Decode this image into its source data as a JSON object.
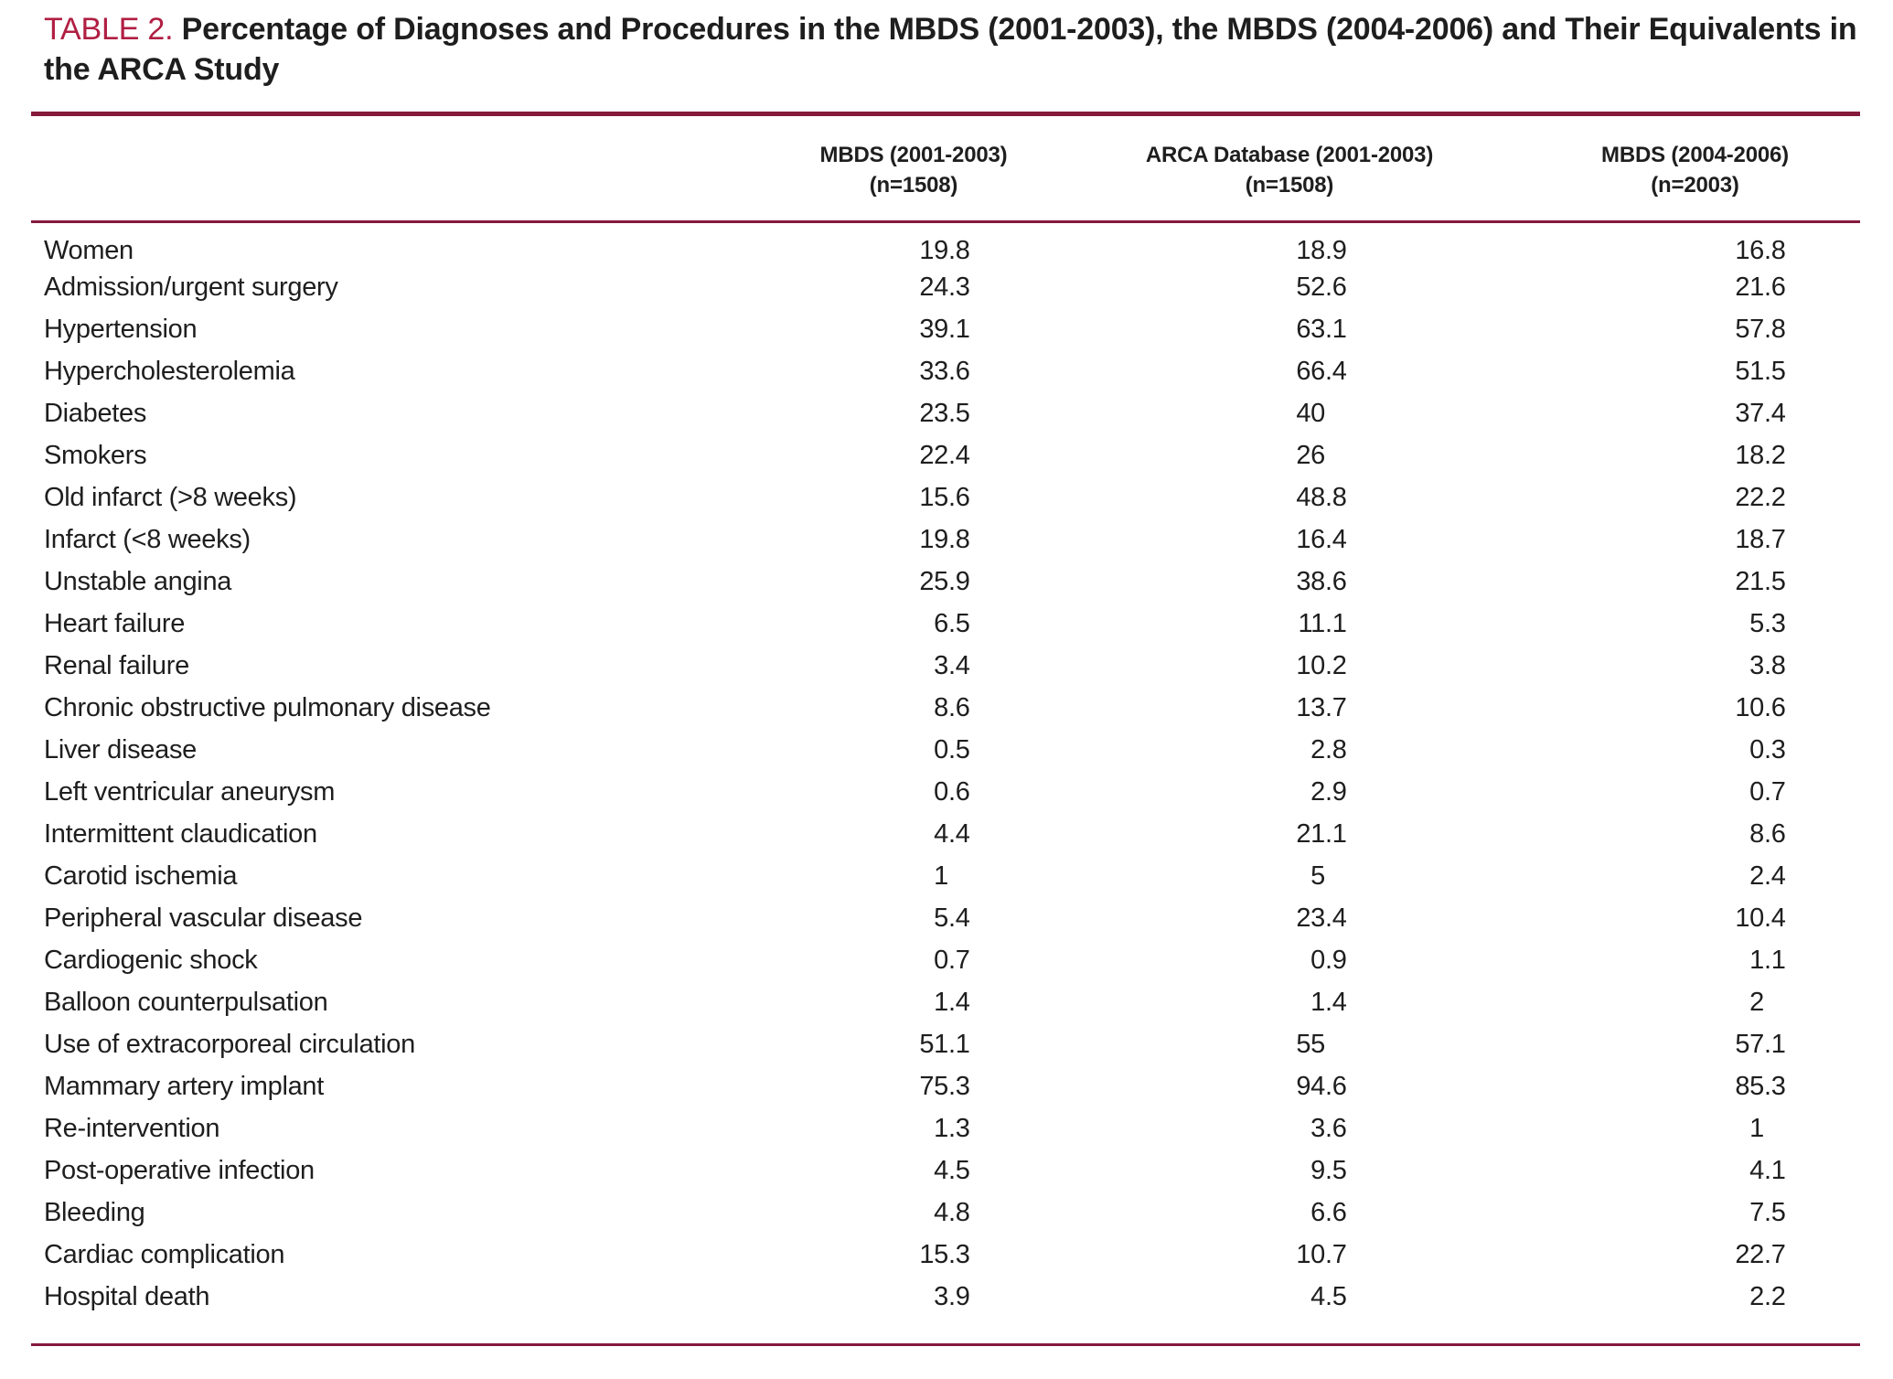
{
  "title": {
    "label": "TABLE 2.",
    "text": "Percentage of Diagnoses and Procedures in the MBDS (2001-2003), the MBDS (2004-2006) and Their Equivalents in the ARCA Study"
  },
  "colors": {
    "accent": "#B01E42",
    "rule": "#85193C",
    "text": "#1E1E1E"
  },
  "table": {
    "header": [
      {
        "name": "MBDS (2001-2003)",
        "n": "(n=1508)"
      },
      {
        "name": "ARCA Database (2001-2003)",
        "n": "(n=1508)"
      },
      {
        "name": "MBDS (2004-2006)",
        "n": "(n=2003)"
      }
    ],
    "rows": [
      {
        "label": "Women",
        "values": [
          "19.8",
          "18.9",
          "16.8"
        ]
      },
      {
        "label": "Admission/urgent surgery",
        "values": [
          "24.3",
          "52.6",
          "21.6"
        ]
      },
      {
        "label": "Hypertension",
        "values": [
          "39.1",
          "63.1",
          "57.8"
        ]
      },
      {
        "label": "Hypercholesterolemia",
        "values": [
          "33.6",
          "66.4",
          "51.5"
        ]
      },
      {
        "label": "Diabetes",
        "values": [
          "23.5",
          "40",
          "37.4"
        ]
      },
      {
        "label": "Smokers",
        "values": [
          "22.4",
          "26",
          "18.2"
        ]
      },
      {
        "label": "Old infarct (>8 weeks)",
        "values": [
          "15.6",
          "48.8",
          "22.2"
        ]
      },
      {
        "label": "Infarct (<8 weeks)",
        "values": [
          "19.8",
          "16.4",
          "18.7"
        ]
      },
      {
        "label": "Unstable angina",
        "values": [
          "25.9",
          "38.6",
          "21.5"
        ]
      },
      {
        "label": "Heart failure",
        "values": [
          "6.5",
          "11.1",
          "5.3"
        ]
      },
      {
        "label": "Renal failure",
        "values": [
          "3.4",
          "10.2",
          "3.8"
        ]
      },
      {
        "label": "Chronic obstructive pulmonary disease",
        "values": [
          "8.6",
          "13.7",
          "10.6"
        ]
      },
      {
        "label": "Liver disease",
        "values": [
          "0.5",
          "2.8",
          "0.3"
        ]
      },
      {
        "label": "Left ventricular aneurysm",
        "values": [
          "0.6",
          "2.9",
          "0.7"
        ]
      },
      {
        "label": "Intermittent claudication",
        "values": [
          "4.4",
          "21.1",
          "8.6"
        ]
      },
      {
        "label": "Carotid ischemia",
        "values": [
          "1",
          "5",
          "2.4"
        ]
      },
      {
        "label": "Peripheral vascular disease",
        "values": [
          "5.4",
          "23.4",
          "10.4"
        ]
      },
      {
        "label": "Cardiogenic shock",
        "values": [
          "0.7",
          "0.9",
          "1.1"
        ]
      },
      {
        "label": "Balloon counterpulsation",
        "values": [
          "1.4",
          "1.4",
          "2"
        ]
      },
      {
        "label": "Use of extracorporeal circulation",
        "values": [
          "51.1",
          "55",
          "57.1"
        ]
      },
      {
        "label": "Mammary artery implant",
        "values": [
          "75.3",
          "94.6",
          "85.3"
        ]
      },
      {
        "label": "Re-intervention",
        "values": [
          "1.3",
          "3.6",
          "1"
        ]
      },
      {
        "label": "Post-operative infection",
        "values": [
          "4.5",
          "9.5",
          "4.1"
        ]
      },
      {
        "label": "Bleeding",
        "values": [
          "4.8",
          "6.6",
          "7.5"
        ]
      },
      {
        "label": "Cardiac complication",
        "values": [
          "15.3",
          "10.7",
          "22.7"
        ]
      },
      {
        "label": "Hospital death",
        "values": [
          "3.9",
          "4.5",
          "2.2"
        ]
      }
    ]
  }
}
